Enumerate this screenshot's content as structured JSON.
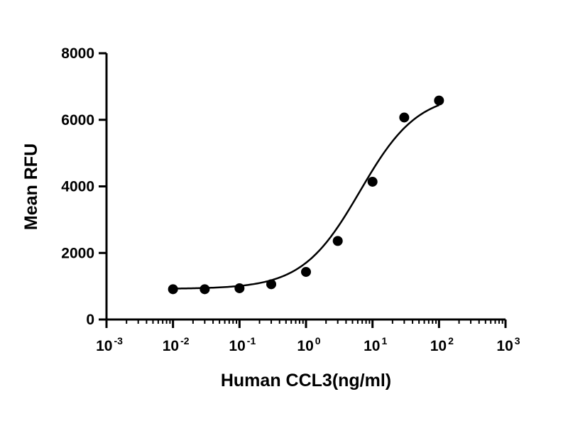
{
  "chart_data": {
    "type": "scatter",
    "title": "",
    "xlabel": "Human CCL3(ng/ml)",
    "ylabel": "Mean RFU",
    "x_scale": "log10",
    "xlim": [
      0.001,
      1000
    ],
    "ylim": [
      0,
      8000
    ],
    "grid": false,
    "legend": "none",
    "y_ticks": [
      "0",
      "2000",
      "4000",
      "6000",
      "8000"
    ],
    "x_ticks": [
      {
        "base": "10",
        "exp": "-3"
      },
      {
        "base": "10",
        "exp": "-2"
      },
      {
        "base": "10",
        "exp": "-1"
      },
      {
        "base": "10",
        "exp": "0"
      },
      {
        "base": "10",
        "exp": "1"
      },
      {
        "base": "10",
        "exp": "2"
      },
      {
        "base": "10",
        "exp": "3"
      }
    ],
    "series": [
      {
        "x": [
          0.01,
          0.03,
          0.1,
          0.3,
          1,
          3,
          10,
          30,
          100
        ],
        "y": [
          910,
          910,
          940,
          1060,
          1430,
          2360,
          4140,
          6070,
          6580
        ],
        "marker": "circle",
        "color": "#000000"
      }
    ],
    "fit_curve": {
      "model": "4PL",
      "bottom": 920,
      "top": 6800,
      "ec50": 6.5,
      "hill": 1.0,
      "color": "#000000"
    }
  }
}
